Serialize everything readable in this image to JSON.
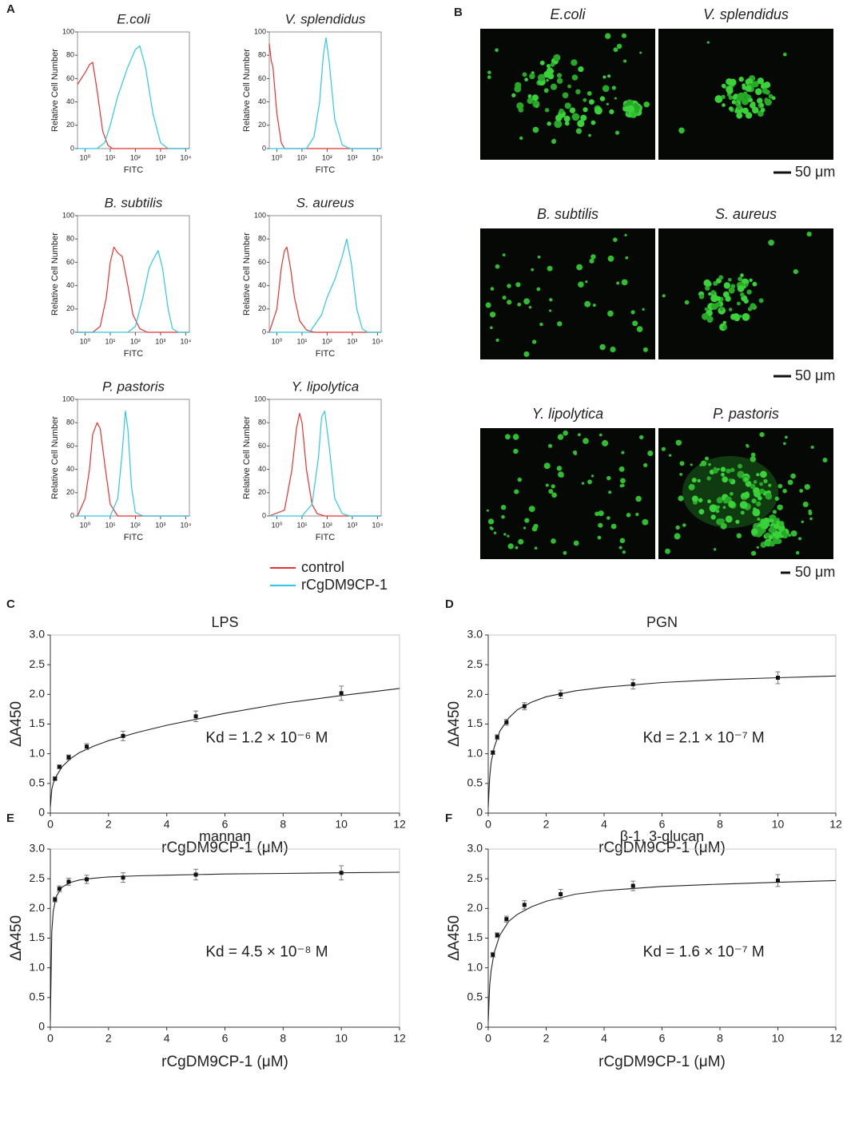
{
  "panel_labels": [
    "A",
    "B",
    "C",
    "D",
    "E",
    "F"
  ],
  "micrographs": {
    "panels": [
      {
        "title": "E.coli"
      },
      {
        "title": "V. splendidus"
      },
      {
        "title": "B. subtilis"
      },
      {
        "title": "S. aureus"
      },
      {
        "title": "Y. lipolytica"
      },
      {
        "title": "P. pastoris"
      }
    ],
    "scale_bars": [
      "50 μm",
      "50 μm",
      "50 μm"
    ]
  },
  "chart_data": [
    {
      "type": "line",
      "title": "E.coli",
      "xlabel": "FITC",
      "ylabel": "Relative Cell Number",
      "log_x": true,
      "xlim": [
        0.5,
        14000
      ],
      "xticks": [
        {
          "value": 1,
          "label": "10⁰"
        },
        {
          "value": 10,
          "label": "10¹"
        },
        {
          "value": 100,
          "label": "10²"
        },
        {
          "value": 1000,
          "label": "10³"
        },
        {
          "value": 10000,
          "label": "10⁴"
        }
      ],
      "ylim": [
        0,
        100
      ],
      "yticks": [
        0,
        20,
        40,
        60,
        80,
        100
      ],
      "series": [
        {
          "name": "control",
          "color": "#e8322e",
          "x": [
            0.5,
            0.7,
            1,
            1.5,
            2,
            3,
            5,
            8,
            12,
            14000
          ],
          "values": [
            55,
            60,
            65,
            72,
            74,
            50,
            15,
            3,
            0,
            0
          ]
        },
        {
          "name": "rCgDM9CP-1",
          "color": "#2ec8e6",
          "x": [
            0.5,
            3,
            6,
            10,
            20,
            50,
            100,
            150,
            250,
            500,
            1000,
            2000,
            14000
          ],
          "values": [
            0,
            0,
            5,
            20,
            45,
            70,
            85,
            88,
            70,
            30,
            5,
            0,
            0
          ]
        }
      ]
    },
    {
      "type": "line",
      "title": "V. splendidus",
      "xlabel": "FITC",
      "ylabel": "Relative Cell Number",
      "log_x": true,
      "xlim": [
        0.5,
        14000
      ],
      "xticks": [
        {
          "value": 1,
          "label": "10⁰"
        },
        {
          "value": 10,
          "label": "10¹"
        },
        {
          "value": 100,
          "label": "10²"
        },
        {
          "value": 1000,
          "label": "10³"
        },
        {
          "value": 10000,
          "label": "10⁴"
        }
      ],
      "ylim": [
        0,
        100
      ],
      "yticks": [
        0,
        20,
        40,
        60,
        80,
        100
      ],
      "series": [
        {
          "name": "control",
          "color": "#e8322e",
          "x": [
            0.5,
            0.6,
            0.7,
            0.8,
            1,
            1.5,
            2,
            14000
          ],
          "values": [
            90,
            75,
            70,
            55,
            30,
            5,
            0,
            0
          ]
        },
        {
          "name": "rCgDM9CP-1",
          "color": "#2ec8e6",
          "x": [
            0.5,
            15,
            30,
            50,
            70,
            90,
            120,
            200,
            400,
            800,
            14000
          ],
          "values": [
            0,
            0,
            10,
            40,
            80,
            95,
            75,
            25,
            3,
            0,
            0
          ]
        }
      ]
    },
    {
      "type": "line",
      "title": "B. subtilis",
      "xlabel": "FITC",
      "ylabel": "Relative Cell Number",
      "log_x": true,
      "xlim": [
        0.5,
        14000
      ],
      "xticks": [
        {
          "value": 1,
          "label": "10⁰"
        },
        {
          "value": 10,
          "label": "10¹"
        },
        {
          "value": 100,
          "label": "10²"
        },
        {
          "value": 1000,
          "label": "10³"
        },
        {
          "value": 10000,
          "label": "10⁴"
        }
      ],
      "ylim": [
        0,
        100
      ],
      "yticks": [
        0,
        20,
        40,
        60,
        80,
        100
      ],
      "series": [
        {
          "name": "control",
          "color": "#e8322e",
          "x": [
            0.5,
            2,
            4,
            7,
            10,
            14,
            20,
            30,
            50,
            80,
            150,
            300,
            14000
          ],
          "values": [
            0,
            0,
            5,
            30,
            60,
            73,
            68,
            65,
            40,
            15,
            3,
            0,
            0
          ]
        },
        {
          "name": "rCgDM9CP-1",
          "color": "#2ec8e6",
          "x": [
            0.5,
            50,
            100,
            200,
            350,
            500,
            800,
            1200,
            2000,
            3000,
            5000,
            14000
          ],
          "values": [
            0,
            0,
            5,
            30,
            55,
            62,
            70,
            55,
            20,
            3,
            0,
            0
          ]
        }
      ]
    },
    {
      "type": "line",
      "title": "S. aureus",
      "xlabel": "FITC",
      "ylabel": "Relative Cell Number",
      "log_x": true,
      "xlim": [
        0.5,
        14000
      ],
      "xticks": [
        {
          "value": 1,
          "label": "10⁰"
        },
        {
          "value": 10,
          "label": "10¹"
        },
        {
          "value": 100,
          "label": "10²"
        },
        {
          "value": 1000,
          "label": "10³"
        },
        {
          "value": 10000,
          "label": "10⁴"
        }
      ],
      "ylim": [
        0,
        100
      ],
      "yticks": [
        0,
        20,
        40,
        60,
        80,
        100
      ],
      "series": [
        {
          "name": "control",
          "color": "#e8322e",
          "x": [
            0.5,
            1,
            1.5,
            2,
            2.5,
            3.5,
            5,
            8,
            15,
            30,
            14000
          ],
          "values": [
            0,
            20,
            55,
            70,
            73,
            55,
            30,
            10,
            2,
            0,
            0
          ]
        },
        {
          "name": "rCgDM9CP-1",
          "color": "#2ec8e6",
          "x": [
            0.5,
            20,
            60,
            100,
            200,
            400,
            600,
            900,
            1500,
            2500,
            4000,
            14000
          ],
          "values": [
            0,
            0,
            15,
            30,
            45,
            65,
            80,
            60,
            20,
            3,
            0,
            0
          ]
        }
      ]
    },
    {
      "type": "line",
      "title": "P. pastoris",
      "xlabel": "FITC",
      "ylabel": "Relative Cell Number",
      "log_x": true,
      "xlim": [
        0.5,
        14000
      ],
      "xticks": [
        {
          "value": 1,
          "label": "10⁰"
        },
        {
          "value": 10,
          "label": "10¹"
        },
        {
          "value": 100,
          "label": "10²"
        },
        {
          "value": 1000,
          "label": "10³"
        },
        {
          "value": 10000,
          "label": "10⁴"
        }
      ],
      "ylim": [
        0,
        100
      ],
      "yticks": [
        0,
        20,
        40,
        60,
        80,
        100
      ],
      "series": [
        {
          "name": "control",
          "color": "#e8322e",
          "x": [
            0.5,
            1,
            1.5,
            2,
            3,
            4,
            6,
            10,
            20,
            14000
          ],
          "values": [
            0,
            15,
            40,
            70,
            80,
            75,
            45,
            10,
            0,
            0
          ]
        },
        {
          "name": "rCgDM9CP-1",
          "color": "#2ec8e6",
          "x": [
            0.5,
            10,
            20,
            30,
            40,
            50,
            70,
            100,
            200,
            14000
          ],
          "values": [
            0,
            0,
            15,
            55,
            90,
            75,
            25,
            3,
            0,
            0
          ]
        }
      ]
    },
    {
      "type": "line",
      "title": "Y. lipolytica",
      "xlabel": "FITC",
      "ylabel": "Relative Cell Number",
      "log_x": true,
      "xlim": [
        0.5,
        14000
      ],
      "xticks": [
        {
          "value": 1,
          "label": "10⁰"
        },
        {
          "value": 10,
          "label": "10¹"
        },
        {
          "value": 100,
          "label": "10²"
        },
        {
          "value": 1000,
          "label": "10³"
        },
        {
          "value": 10000,
          "label": "10⁴"
        }
      ],
      "ylim": [
        0,
        100
      ],
      "yticks": [
        0,
        20,
        40,
        60,
        80,
        100
      ],
      "series": [
        {
          "name": "control",
          "color": "#e8322e",
          "x": [
            0.5,
            2,
            4,
            6,
            8,
            10,
            15,
            25,
            40,
            80,
            14000
          ],
          "values": [
            0,
            5,
            40,
            75,
            88,
            80,
            40,
            10,
            2,
            0,
            0
          ]
        },
        {
          "name": "rCgDM9CP-1",
          "color": "#2ec8e6",
          "x": [
            0.5,
            10,
            25,
            45,
            60,
            80,
            120,
            200,
            400,
            800,
            14000
          ],
          "values": [
            0,
            0,
            10,
            50,
            85,
            90,
            60,
            15,
            2,
            0,
            0
          ]
        }
      ]
    },
    {
      "type": "scatter",
      "title": "LPS",
      "xlabel": "rCgDM9CP-1 (μM)",
      "ylabel": "ΔA450",
      "annotation": "Kd = 1.2 × 10⁻⁶ M",
      "xlim": [
        0,
        12
      ],
      "xticks": [
        0,
        2,
        4,
        6,
        8,
        10,
        12
      ],
      "ylim": [
        0,
        3
      ],
      "yticks": [
        0,
        0.5,
        {
          "value": 1,
          "label": "1.0"
        },
        1.5,
        {
          "value": 2,
          "label": "2.0"
        },
        2.5,
        {
          "value": 3,
          "label": "3.0"
        }
      ],
      "x": [
        0.16,
        0.31,
        0.63,
        1.25,
        2.5,
        5,
        10
      ],
      "values": [
        0.58,
        0.78,
        0.94,
        1.12,
        1.3,
        1.63,
        2.02
      ],
      "errors": [
        0.03,
        0.03,
        0.04,
        0.05,
        0.08,
        0.09,
        0.12
      ],
      "fit": {
        "x": [
          0,
          0.05,
          0.1,
          0.2,
          0.4,
          0.7,
          1,
          1.5,
          2,
          3,
          4,
          6,
          8,
          10,
          12
        ],
        "values": [
          0.1,
          0.4,
          0.5,
          0.62,
          0.78,
          0.92,
          1.02,
          1.13,
          1.22,
          1.36,
          1.48,
          1.68,
          1.85,
          1.98,
          2.1
        ]
      }
    },
    {
      "type": "scatter",
      "title": "PGN",
      "xlabel": "rCgDM9CP-1 (μM)",
      "ylabel": "ΔA450",
      "annotation": "Kd = 2.1 × 10⁻⁷ M",
      "xlim": [
        0,
        12
      ],
      "xticks": [
        0,
        2,
        4,
        6,
        8,
        10,
        12
      ],
      "ylim": [
        0,
        3
      ],
      "yticks": [
        0,
        0.5,
        {
          "value": 1,
          "label": "1.0"
        },
        1.5,
        {
          "value": 2,
          "label": "2.0"
        },
        2.5,
        {
          "value": 3,
          "label": "3.0"
        }
      ],
      "x": [
        0.16,
        0.31,
        0.63,
        1.25,
        2.5,
        5,
        10
      ],
      "values": [
        1.02,
        1.28,
        1.53,
        1.8,
        2.0,
        2.17,
        2.28
      ],
      "errors": [
        0.03,
        0.04,
        0.05,
        0.06,
        0.07,
        0.08,
        0.1
      ],
      "fit": {
        "x": [
          0,
          0.05,
          0.1,
          0.2,
          0.4,
          0.7,
          1,
          1.5,
          2,
          3,
          4,
          6,
          8,
          10,
          12
        ],
        "values": [
          0.1,
          0.6,
          0.85,
          1.1,
          1.38,
          1.6,
          1.74,
          1.87,
          1.96,
          2.06,
          2.12,
          2.2,
          2.25,
          2.28,
          2.31
        ]
      }
    },
    {
      "type": "scatter",
      "title": "mannan",
      "xlabel": "rCgDM9CP-1 (μM)",
      "ylabel": "ΔA450",
      "annotation": "Kd = 4.5 × 10⁻⁸ M",
      "xlim": [
        0,
        12
      ],
      "xticks": [
        0,
        2,
        4,
        6,
        8,
        10,
        12
      ],
      "ylim": [
        0,
        3
      ],
      "yticks": [
        0,
        0.5,
        {
          "value": 1,
          "label": "1.0"
        },
        1.5,
        {
          "value": 2,
          "label": "2.0"
        },
        2.5,
        {
          "value": 3,
          "label": "3.0"
        }
      ],
      "x": [
        0.16,
        0.31,
        0.63,
        1.25,
        2.5,
        5,
        10
      ],
      "values": [
        2.15,
        2.33,
        2.45,
        2.49,
        2.52,
        2.57,
        2.6
      ],
      "errors": [
        0.04,
        0.05,
        0.06,
        0.07,
        0.08,
        0.09,
        0.12
      ],
      "fit": {
        "x": [
          0,
          0.05,
          0.1,
          0.2,
          0.4,
          0.7,
          1,
          1.5,
          2,
          3,
          4,
          6,
          8,
          10,
          12
        ],
        "values": [
          0.1,
          1.6,
          1.95,
          2.2,
          2.36,
          2.44,
          2.48,
          2.51,
          2.53,
          2.55,
          2.56,
          2.58,
          2.59,
          2.6,
          2.61
        ]
      }
    },
    {
      "type": "scatter",
      "title": "β-1, 3-glucan",
      "xlabel": "rCgDM9CP-1 (μM)",
      "ylabel": "ΔA450",
      "annotation": "Kd = 1.6 × 10⁻⁷ M",
      "xlim": [
        0,
        12
      ],
      "xticks": [
        0,
        2,
        4,
        6,
        8,
        10,
        12
      ],
      "ylim": [
        0,
        3
      ],
      "yticks": [
        0,
        0.5,
        {
          "value": 1,
          "label": "1.0"
        },
        1.5,
        {
          "value": 2,
          "label": "2.0"
        },
        2.5,
        {
          "value": 3,
          "label": "3.0"
        }
      ],
      "x": [
        0.16,
        0.31,
        0.63,
        1.25,
        2.5,
        5,
        10
      ],
      "values": [
        1.22,
        1.55,
        1.82,
        2.06,
        2.24,
        2.38,
        2.47
      ],
      "errors": [
        0.04,
        0.04,
        0.05,
        0.07,
        0.08,
        0.08,
        0.1
      ],
      "fit": {
        "x": [
          0,
          0.05,
          0.1,
          0.2,
          0.4,
          0.7,
          1,
          1.5,
          2,
          3,
          4,
          6,
          8,
          10,
          12
        ],
        "values": [
          0.1,
          0.7,
          0.95,
          1.25,
          1.55,
          1.78,
          1.9,
          2.03,
          2.12,
          2.24,
          2.3,
          2.37,
          2.41,
          2.44,
          2.47
        ]
      }
    }
  ]
}
